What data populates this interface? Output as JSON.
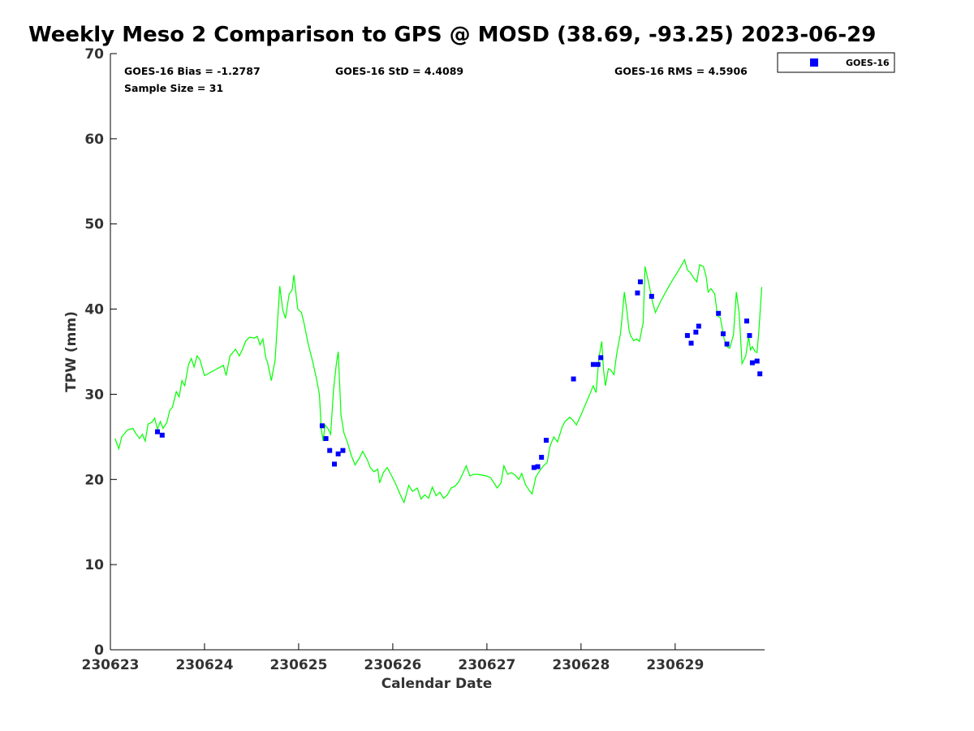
{
  "chart_data": {
    "type": "scatter",
    "title": "Weekly Meso 2 Comparison to GPS @ MOSD (38.69, -93.25) 2023-06-29",
    "xlabel": "Calendar Date",
    "ylabel": "TPW (mm)",
    "ylim": [
      0,
      70
    ],
    "xlim": [
      0,
      6.95
    ],
    "x_tick_labels": [
      "230623",
      "230624",
      "230625",
      "230626",
      "230627",
      "230628",
      "230629"
    ],
    "y_tick_labels": [
      "0",
      "10",
      "20",
      "30",
      "40",
      "50",
      "60",
      "70"
    ],
    "grid": false,
    "legend_position": "top-right, outside plot",
    "stats": {
      "bias": "GOES-16 Bias = -1.2787",
      "std": "GOES-16 StD = 4.4089",
      "rms": "GOES-16 RMS = 4.5906",
      "sample_size": "Sample Size = 31"
    },
    "series": [
      {
        "name": "GOES-16",
        "kind": "markers",
        "color": "#0000ff",
        "marker": "square",
        "points": [
          [
            0.5,
            25.6
          ],
          [
            0.55,
            25.2
          ],
          [
            2.25,
            26.3
          ],
          [
            2.29,
            24.8
          ],
          [
            2.33,
            23.4
          ],
          [
            2.38,
            21.8
          ],
          [
            2.42,
            23.0
          ],
          [
            2.47,
            23.4
          ],
          [
            4.5,
            21.4
          ],
          [
            4.54,
            21.5
          ],
          [
            4.58,
            22.6
          ],
          [
            4.63,
            24.6
          ],
          [
            4.92,
            31.8
          ],
          [
            5.13,
            33.5
          ],
          [
            5.18,
            33.5
          ],
          [
            5.21,
            34.3
          ],
          [
            5.6,
            41.9
          ],
          [
            5.63,
            43.2
          ],
          [
            5.75,
            41.5
          ],
          [
            6.13,
            36.9
          ],
          [
            6.17,
            36.0
          ],
          [
            6.22,
            37.3
          ],
          [
            6.25,
            38.0
          ],
          [
            6.46,
            39.5
          ],
          [
            6.51,
            37.1
          ],
          [
            6.55,
            35.9
          ],
          [
            6.76,
            38.6
          ],
          [
            6.79,
            36.9
          ],
          [
            6.82,
            33.7
          ],
          [
            6.87,
            33.9
          ],
          [
            6.9,
            32.4
          ]
        ]
      },
      {
        "kind": "line",
        "color": "#00ff00",
        "points": [
          [
            0.05,
            24.8
          ],
          [
            0.09,
            23.6
          ],
          [
            0.12,
            25.0
          ],
          [
            0.18,
            25.8
          ],
          [
            0.24,
            26.0
          ],
          [
            0.27,
            25.4
          ],
          [
            0.31,
            24.8
          ],
          [
            0.34,
            25.3
          ],
          [
            0.37,
            24.5
          ],
          [
            0.4,
            26.5
          ],
          [
            0.44,
            26.7
          ],
          [
            0.47,
            27.2
          ],
          [
            0.5,
            25.9
          ],
          [
            0.53,
            26.8
          ],
          [
            0.56,
            26.0
          ],
          [
            0.6,
            26.7
          ],
          [
            0.63,
            28.1
          ],
          [
            0.66,
            28.5
          ],
          [
            0.7,
            30.3
          ],
          [
            0.73,
            29.7
          ],
          [
            0.76,
            31.6
          ],
          [
            0.79,
            31.0
          ],
          [
            0.83,
            33.5
          ],
          [
            0.86,
            34.2
          ],
          [
            0.89,
            33.2
          ],
          [
            0.92,
            34.5
          ],
          [
            0.95,
            34.1
          ],
          [
            1.0,
            32.2
          ],
          [
            1.1,
            32.8
          ],
          [
            1.2,
            33.4
          ],
          [
            1.23,
            32.2
          ],
          [
            1.27,
            34.5
          ],
          [
            1.33,
            35.3
          ],
          [
            1.37,
            34.5
          ],
          [
            1.4,
            35.2
          ],
          [
            1.44,
            36.3
          ],
          [
            1.48,
            36.7
          ],
          [
            1.53,
            36.6
          ],
          [
            1.56,
            36.8
          ],
          [
            1.59,
            35.8
          ],
          [
            1.62,
            36.5
          ],
          [
            1.65,
            34.3
          ],
          [
            1.67,
            33.7
          ],
          [
            1.71,
            31.6
          ],
          [
            1.75,
            34.0
          ],
          [
            1.8,
            42.7
          ],
          [
            1.83,
            40.0
          ],
          [
            1.86,
            38.9
          ],
          [
            1.9,
            41.8
          ],
          [
            1.93,
            42.2
          ],
          [
            1.95,
            44.0
          ],
          [
            1.99,
            40.0
          ],
          [
            2.03,
            39.6
          ],
          [
            2.06,
            38.2
          ],
          [
            2.1,
            36.0
          ],
          [
            2.15,
            33.8
          ],
          [
            2.19,
            31.8
          ],
          [
            2.22,
            30.0
          ],
          [
            2.24,
            26.0
          ],
          [
            2.26,
            24.5
          ],
          [
            2.28,
            26.4
          ],
          [
            2.31,
            26.0
          ],
          [
            2.34,
            25.3
          ],
          [
            2.37,
            30.5
          ],
          [
            2.4,
            33.5
          ],
          [
            2.42,
            35.0
          ],
          [
            2.45,
            27.6
          ],
          [
            2.48,
            25.5
          ],
          [
            2.52,
            24.3
          ],
          [
            2.56,
            22.8
          ],
          [
            2.6,
            21.7
          ],
          [
            2.65,
            22.6
          ],
          [
            2.68,
            23.3
          ],
          [
            2.73,
            22.3
          ],
          [
            2.76,
            21.4
          ],
          [
            2.8,
            20.9
          ],
          [
            2.84,
            21.2
          ],
          [
            2.86,
            19.6
          ],
          [
            2.9,
            20.8
          ],
          [
            2.94,
            21.4
          ],
          [
            2.98,
            20.6
          ],
          [
            3.03,
            19.5
          ],
          [
            3.08,
            18.2
          ],
          [
            3.12,
            17.3
          ],
          [
            3.17,
            19.3
          ],
          [
            3.21,
            18.6
          ],
          [
            3.26,
            19.0
          ],
          [
            3.3,
            17.7
          ],
          [
            3.34,
            18.2
          ],
          [
            3.38,
            17.8
          ],
          [
            3.42,
            19.1
          ],
          [
            3.46,
            18.1
          ],
          [
            3.5,
            18.5
          ],
          [
            3.54,
            17.8
          ],
          [
            3.58,
            18.2
          ],
          [
            3.62,
            19.0
          ],
          [
            3.66,
            19.2
          ],
          [
            3.7,
            19.7
          ],
          [
            3.74,
            20.6
          ],
          [
            3.78,
            21.6
          ],
          [
            3.82,
            20.4
          ],
          [
            3.86,
            20.6
          ],
          [
            3.9,
            20.6
          ],
          [
            3.95,
            20.5
          ],
          [
            4.0,
            20.4
          ],
          [
            4.04,
            20.2
          ],
          [
            4.08,
            19.5
          ],
          [
            4.11,
            19.0
          ],
          [
            4.15,
            19.6
          ],
          [
            4.18,
            21.6
          ],
          [
            4.22,
            20.6
          ],
          [
            4.26,
            20.8
          ],
          [
            4.3,
            20.5
          ],
          [
            4.34,
            20.0
          ],
          [
            4.37,
            20.7
          ],
          [
            4.41,
            19.4
          ],
          [
            4.45,
            18.7
          ],
          [
            4.48,
            18.3
          ],
          [
            4.52,
            20.3
          ],
          [
            4.56,
            21.0
          ],
          [
            4.6,
            21.6
          ],
          [
            4.64,
            22.0
          ],
          [
            4.67,
            23.9
          ],
          [
            4.71,
            25.0
          ],
          [
            4.75,
            24.4
          ],
          [
            4.8,
            26.2
          ],
          [
            4.83,
            26.8
          ],
          [
            4.88,
            27.3
          ],
          [
            4.91,
            27.0
          ],
          [
            4.95,
            26.4
          ],
          [
            5.0,
            27.6
          ],
          [
            5.05,
            28.9
          ],
          [
            5.1,
            30.2
          ],
          [
            5.13,
            31.0
          ],
          [
            5.16,
            30.2
          ],
          [
            5.19,
            34.3
          ],
          [
            5.22,
            36.2
          ],
          [
            5.24,
            32.7
          ],
          [
            5.26,
            31.0
          ],
          [
            5.29,
            33.0
          ],
          [
            5.32,
            32.8
          ],
          [
            5.35,
            32.3
          ],
          [
            5.38,
            34.8
          ],
          [
            5.42,
            37.2
          ],
          [
            5.46,
            42.0
          ],
          [
            5.49,
            39.5
          ],
          [
            5.51,
            37.5
          ],
          [
            5.53,
            36.8
          ],
          [
            5.56,
            36.3
          ],
          [
            5.59,
            36.5
          ],
          [
            5.62,
            36.2
          ],
          [
            5.66,
            38.4
          ],
          [
            5.68,
            45.0
          ],
          [
            5.72,
            43.0
          ],
          [
            5.76,
            40.8
          ],
          [
            5.79,
            39.6
          ],
          [
            5.85,
            41.0
          ],
          [
            5.95,
            43.0
          ],
          [
            6.05,
            44.8
          ],
          [
            6.1,
            45.8
          ],
          [
            6.13,
            44.6
          ],
          [
            6.16,
            44.3
          ],
          [
            6.2,
            43.6
          ],
          [
            6.23,
            43.2
          ],
          [
            6.26,
            45.2
          ],
          [
            6.3,
            45.0
          ],
          [
            6.33,
            43.8
          ],
          [
            6.35,
            42.0
          ],
          [
            6.38,
            42.4
          ],
          [
            6.42,
            41.8
          ],
          [
            6.45,
            39.2
          ],
          [
            6.48,
            39.0
          ],
          [
            6.52,
            36.5
          ],
          [
            6.55,
            35.6
          ],
          [
            6.58,
            35.4
          ],
          [
            6.62,
            37.0
          ],
          [
            6.65,
            42.0
          ],
          [
            6.68,
            39.5
          ],
          [
            6.71,
            33.6
          ],
          [
            6.75,
            34.5
          ],
          [
            6.78,
            36.8
          ],
          [
            6.8,
            35.2
          ],
          [
            6.82,
            35.6
          ],
          [
            6.85,
            35.0
          ],
          [
            6.87,
            34.9
          ],
          [
            6.89,
            37.5
          ],
          [
            6.92,
            42.6
          ]
        ]
      }
    ]
  }
}
